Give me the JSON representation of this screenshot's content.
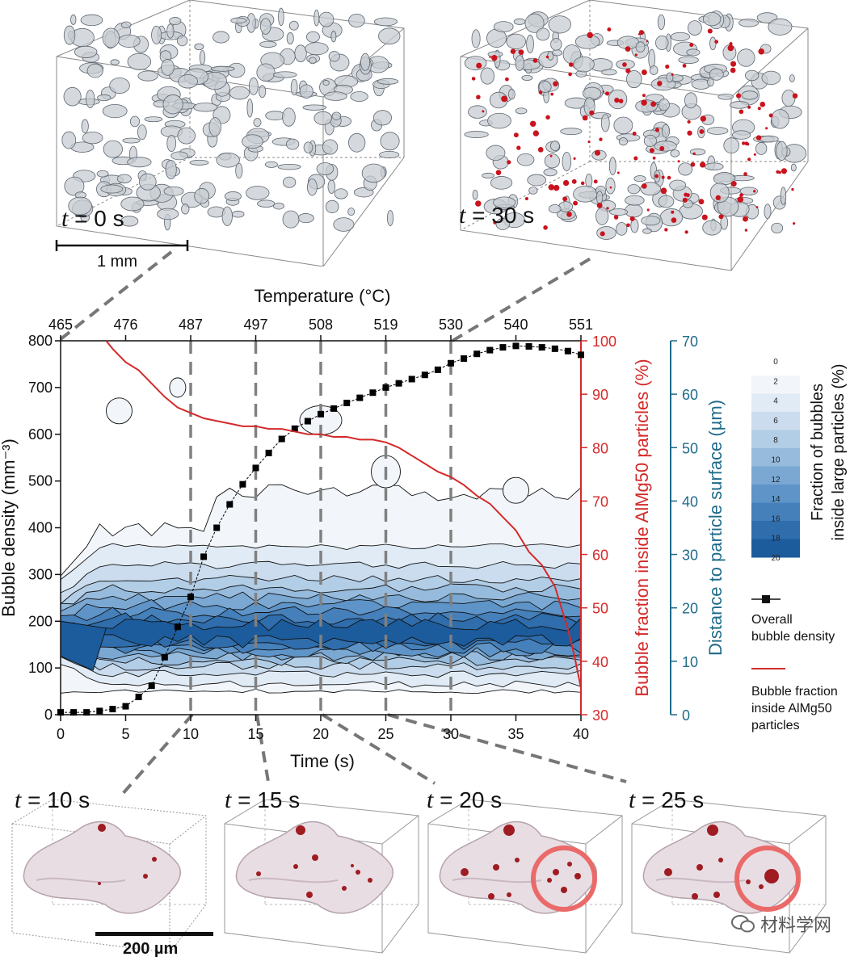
{
  "panels": {
    "top_left_time": "t",
    "top_left_time_value": " = 0 s",
    "top_right_time": "t",
    "top_right_time_value": " = 30 s",
    "top_scale_label": "1 mm",
    "bottom_times": [
      {
        "t": "t",
        "v": " = 10 s"
      },
      {
        "t": "t",
        "v": " = 15 s"
      },
      {
        "t": "t",
        "v": " = 20 s"
      },
      {
        "t": "t",
        "v": " = 25 s"
      }
    ],
    "bottom_scale_label": "200 µm"
  },
  "watermark": "材料学网",
  "chart_data": {
    "type": "contour",
    "title": "",
    "top_axis_label": "Temperature (°C)",
    "top_ticks": [
      "465",
      "476",
      "487",
      "497",
      "508",
      "519",
      "530",
      "540",
      "551"
    ],
    "xlabel": "Time (s)",
    "xlim": [
      0,
      40
    ],
    "xticks": [
      "0",
      "5",
      "10",
      "15",
      "20",
      "25",
      "30",
      "35",
      "40"
    ],
    "ylabel": "Bubble density (mm⁻³)",
    "ylim": [
      0,
      800
    ],
    "yticks": [
      "0",
      "100",
      "200",
      "300",
      "400",
      "500",
      "600",
      "700",
      "800"
    ],
    "y2label": "Bubble fraction inside AlMg50 particles (%)",
    "y2lim": [
      30,
      100
    ],
    "y2ticks": [
      "30",
      "40",
      "50",
      "60",
      "70",
      "80",
      "90",
      "100"
    ],
    "y3label": "Distance to particle surface (µm)",
    "y3lim": [
      0,
      70
    ],
    "y3ticks": [
      "0",
      "10",
      "20",
      "30",
      "40",
      "50",
      "60",
      "70"
    ],
    "dashed_time_markers": [
      10,
      15,
      20,
      25,
      30
    ],
    "colorbar": {
      "label_line1": "Fraction of bubbles",
      "label_line2": "inside large particles (%)",
      "levels": [
        "0",
        "2",
        "4",
        "6",
        "8",
        "10",
        "12",
        "14",
        "16",
        "18",
        "20"
      ],
      "colors": [
        "#f2f6fb",
        "#e0ebf5",
        "#cadcee",
        "#b2cde6",
        "#97bbdd",
        "#7aa8d3",
        "#5e94c8",
        "#4580bb",
        "#2f6dac",
        "#1c5c9c"
      ]
    },
    "series": [
      {
        "name": "Overall bubble density",
        "legend_line1": "Overall",
        "legend_line2": "bubble density",
        "axis": "left",
        "color": "#000000",
        "x": [
          0,
          1,
          2,
          3,
          4,
          5,
          6,
          7,
          8,
          9,
          10,
          11,
          12,
          13,
          14,
          15,
          16,
          17,
          18,
          19,
          20,
          21,
          22,
          23,
          24,
          25,
          26,
          27,
          28,
          29,
          30,
          31,
          32,
          33,
          34,
          35,
          36,
          37,
          38,
          39,
          40
        ],
        "y": [
          5,
          5,
          5,
          8,
          12,
          18,
          38,
          62,
          123,
          188,
          252,
          338,
          400,
          450,
          493,
          528,
          560,
          590,
          612,
          628,
          643,
          655,
          667,
          678,
          689,
          700,
          709,
          718,
          727,
          738,
          752,
          762,
          772,
          780,
          786,
          789,
          788,
          786,
          783,
          778,
          770
        ]
      },
      {
        "name": "Bubble fraction inside AlMg50 particles",
        "legend_line1": "Bubble fraction",
        "legend_line2": "inside AlMg50",
        "legend_line3": "particles",
        "axis": "right",
        "color": "#d42a2a",
        "x": [
          3.5,
          4,
          5,
          6,
          7,
          8,
          9,
          10,
          11,
          12,
          13,
          14,
          15,
          16,
          17,
          18,
          19,
          20,
          21,
          22,
          23,
          24,
          25,
          26,
          27,
          28,
          29,
          30,
          31,
          32,
          33,
          34,
          35,
          36,
          37,
          38,
          38.5,
          39,
          39.5,
          40
        ],
        "y": [
          100,
          98.5,
          96,
          94.5,
          92,
          89.5,
          87.5,
          86.5,
          85.5,
          85,
          84.5,
          84,
          84,
          83.5,
          83.5,
          83,
          82.5,
          82.5,
          82,
          82,
          81.5,
          81.5,
          81,
          80,
          78.5,
          77,
          75.5,
          74.5,
          73,
          71,
          69.5,
          67,
          64.5,
          60.5,
          58,
          54,
          50,
          46,
          41,
          35
        ]
      }
    ]
  }
}
